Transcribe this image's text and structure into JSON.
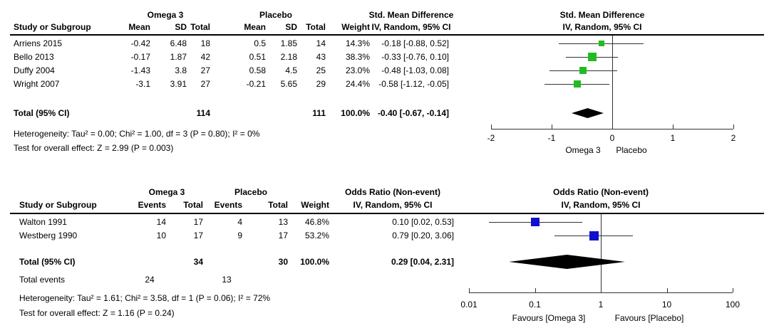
{
  "chart_data": [
    {
      "type": "scatter",
      "subtype": "forest-plot",
      "group1": "Omega 3",
      "group2": "Placebo",
      "effect_title": "Std. Mean Difference",
      "method": "IV, Random, 95% CI",
      "col_headers": [
        "Study or Subgroup",
        "Mean",
        "SD",
        "Total",
        "Mean",
        "SD",
        "Total",
        "Weight"
      ],
      "studies": [
        {
          "name": "Arriens 2015",
          "cells": [
            "-0.42",
            "6.48",
            "18",
            "0.5",
            "1.85",
            "14",
            "14.3%"
          ],
          "ci": "-0.18 [-0.88, 0.52]",
          "est": -0.18,
          "lo": -0.88,
          "hi": 0.52,
          "weight_pct": 14.3
        },
        {
          "name": "Bello 2013",
          "cells": [
            "-0.17",
            "1.87",
            "42",
            "0.51",
            "2.18",
            "43",
            "38.3%"
          ],
          "ci": "-0.33 [-0.76, 0.10]",
          "est": -0.33,
          "lo": -0.76,
          "hi": 0.1,
          "weight_pct": 38.3
        },
        {
          "name": "Duffy 2004",
          "cells": [
            "-1.43",
            "3.8",
            "27",
            "0.58",
            "4.5",
            "25",
            "23.0%"
          ],
          "ci": "-0.48 [-1.03, 0.08]",
          "est": -0.48,
          "lo": -1.03,
          "hi": 0.08,
          "weight_pct": 23.0
        },
        {
          "name": "Wright 2007",
          "cells": [
            "-3.1",
            "3.91",
            "27",
            "-0.21",
            "5.65",
            "29",
            "24.4%"
          ],
          "ci": "-0.58 [-1.12, -0.05]",
          "est": -0.58,
          "lo": -1.12,
          "hi": -0.05,
          "weight_pct": 24.4
        }
      ],
      "total": {
        "label": "Total (95% CI)",
        "cells": [
          "",
          "",
          "114",
          "",
          "",
          "111",
          "100.0%"
        ],
        "ci": "-0.40 [-0.67, -0.14]",
        "est": -0.4,
        "lo": -0.67,
        "hi": -0.14
      },
      "heterogeneity": "Heterogeneity: Tau² = 0.00; Chi² = 1.00, df = 3 (P = 0.80); I² = 0%",
      "overall_test": "Test for overall effect: Z = 2.99 (P = 0.003)",
      "axis": {
        "scale": "linear",
        "ticks": [
          -2,
          -1,
          0,
          1,
          2
        ],
        "tick_labels": [
          "-2",
          "-1",
          "0",
          "1",
          "2"
        ],
        "favours_left": "Omega 3",
        "favours_right": "Placebo"
      },
      "marker_color": "#22bb22"
    },
    {
      "type": "scatter",
      "subtype": "forest-plot",
      "group1": "Omega 3",
      "group2": "Placebo",
      "effect_title": "Odds Ratio (Non-event)",
      "method": "IV, Random, 95% CI",
      "col_headers": [
        "Study or Subgroup",
        "Events",
        "Total",
        "Events",
        "Total",
        "Weight"
      ],
      "studies": [
        {
          "name": "Walton 1991",
          "cells": [
            "14",
            "17",
            "4",
            "13",
            "46.8%"
          ],
          "ci": "0.10 [0.02, 0.53]",
          "est": 0.1,
          "lo": 0.02,
          "hi": 0.53,
          "weight_pct": 46.8
        },
        {
          "name": "Westberg 1990",
          "cells": [
            "10",
            "17",
            "9",
            "17",
            "53.2%"
          ],
          "ci": "0.79 [0.20, 3.06]",
          "est": 0.79,
          "lo": 0.2,
          "hi": 3.06,
          "weight_pct": 53.2
        }
      ],
      "total": {
        "label": "Total (95% CI)",
        "cells": [
          "",
          "34",
          "",
          "30",
          "100.0%"
        ],
        "ci": "0.29 [0.04, 2.31]",
        "est": 0.29,
        "lo": 0.04,
        "hi": 2.31
      },
      "total_events": {
        "label": "Total events",
        "e1": "24",
        "e2": "13"
      },
      "heterogeneity": "Heterogeneity: Tau² = 1.61; Chi² = 3.58, df = 1 (P = 0.06); I² = 72%",
      "overall_test": "Test for overall effect: Z = 1.16 (P = 0.24)",
      "axis": {
        "scale": "log10",
        "ticks": [
          0.01,
          0.1,
          1,
          10,
          100
        ],
        "tick_labels": [
          "0.01",
          "0.1",
          "1",
          "10",
          "100"
        ],
        "favours_left": "Favours [Omega 3]",
        "favours_right": "Favours [Placebo]"
      },
      "marker_color": "#1111cc"
    }
  ]
}
